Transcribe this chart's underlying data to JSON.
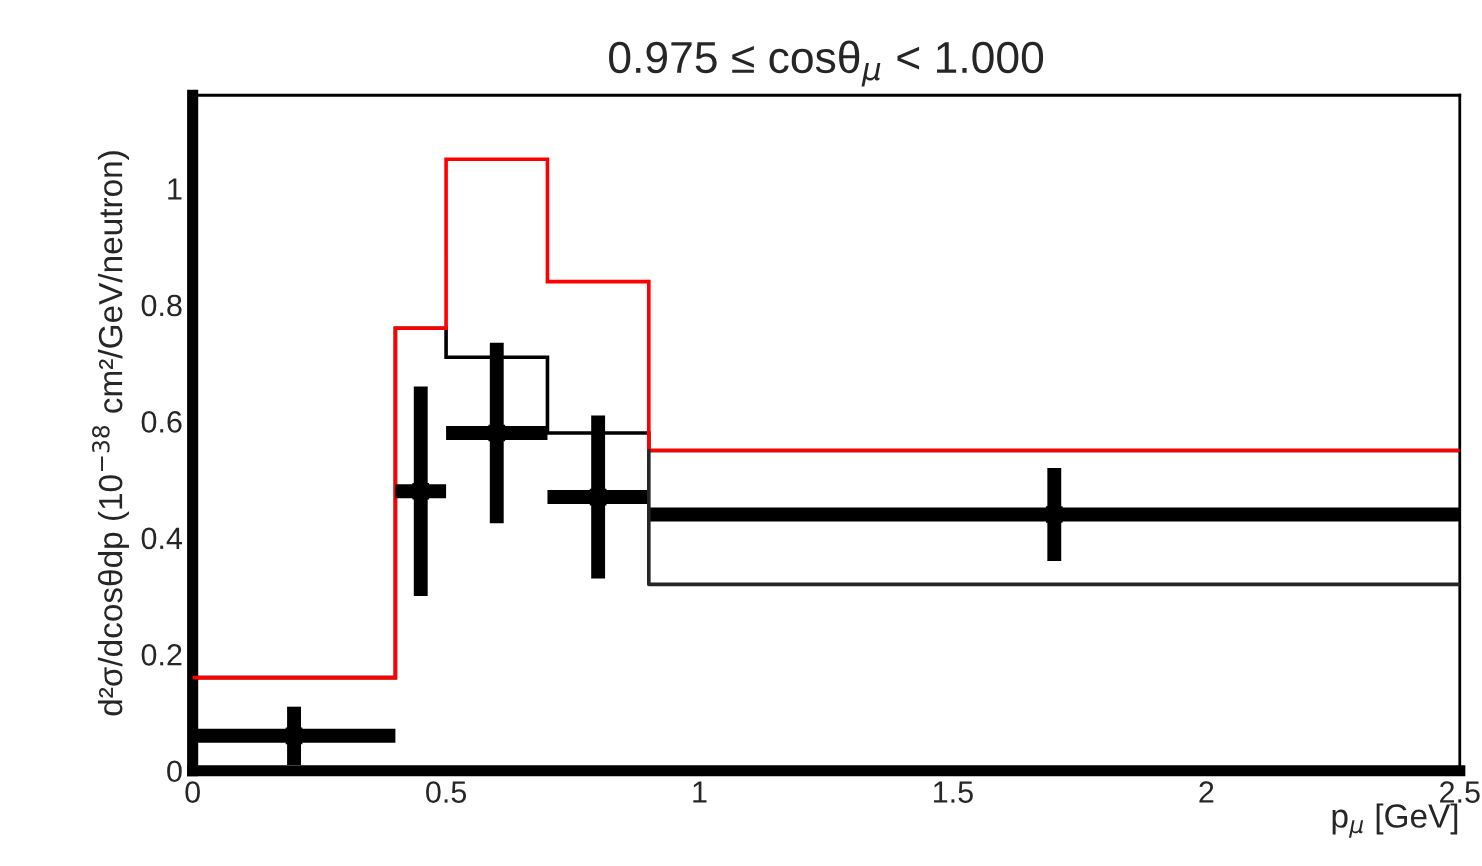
{
  "chart_data": {
    "type": "histogram",
    "title": "0.975 ≤ cosθ$_{μ}$ < 1.000",
    "xlabel": "p$_{μ}$ [GeV]",
    "ylabel": "d²σ/dcosθdp (10$^{−38}$ cm²/GeV/neutron)",
    "bins": [
      0,
      0.4,
      0.5,
      0.7,
      0.9,
      2.5
    ],
    "series": [
      {
        "color": "#ff0000",
        "values": [
          0.16,
          0.76,
          1.05,
          0.84,
          0.55
        ]
      },
      {
        "color": "#000000",
        "values": [
          0.16,
          0.76,
          0.71,
          0.58,
          0.55
        ]
      },
      {
        "type": "line",
        "color": "#262626",
        "x": [
          0.9,
          0.9,
          2.5
        ],
        "values": [
          0.55,
          0.32,
          0.32
        ],
        "marker": "none",
        "line_style": "solid"
      },
      {
        "type": "scatter",
        "color": "#000000",
        "x": [
          0.2,
          0.45,
          0.6,
          0.8,
          1.7
        ],
        "values": [
          0.06,
          0.48,
          0.58,
          0.47,
          0.44
        ],
        "errors": [
          0.05,
          0.18,
          0.155,
          0.14,
          0.08
        ],
        "xerrors": [
          0.2,
          0.05,
          0.1,
          0.1,
          0.8
        ],
        "marker": "square"
      }
    ],
    "xlim": [
      0,
      2.5
    ],
    "xticks": [
      0,
      0.5,
      1,
      1.5,
      2,
      2.5
    ],
    "ylim": [
      0,
      1.16
    ],
    "yticks": [
      0,
      0.2,
      0.4,
      0.6,
      0.8,
      1
    ],
    "grid": false,
    "legend": false
  }
}
